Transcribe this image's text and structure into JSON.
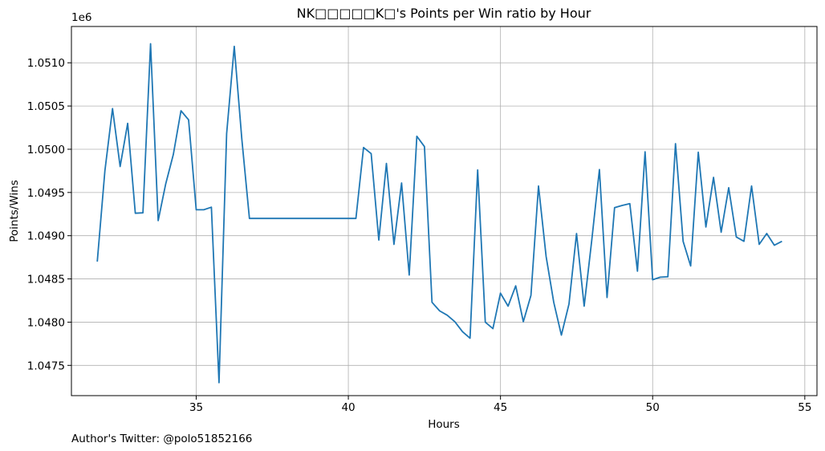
{
  "chart_data": {
    "type": "line",
    "title": "NK□□□□□K□'s Points per Win ratio by Hour",
    "xlabel": "Hours",
    "ylabel": "Points/Wins",
    "y_offset_label": "1e6",
    "xlim": [
      30.9,
      55.4
    ],
    "ylim": [
      1047150,
      1051420
    ],
    "xticks": [
      35,
      40,
      45,
      50,
      55
    ],
    "xtick_labels": [
      "35",
      "40",
      "45",
      "50",
      "55"
    ],
    "yticks": [
      1047500,
      1048000,
      1048500,
      1049000,
      1049500,
      1050000,
      1050500,
      1051000
    ],
    "ytick_labels": [
      "1.0475",
      "1.0480",
      "1.0485",
      "1.0490",
      "1.0495",
      "1.0500",
      "1.0505",
      "1.0510"
    ],
    "grid": true,
    "line_color": "#1f77b4",
    "series": [
      {
        "x": [
          31.75,
          32.0,
          32.25,
          32.5,
          32.75,
          33.0,
          33.25,
          33.5,
          33.75,
          34.0,
          34.25,
          34.5,
          34.75,
          35.0,
          35.25,
          35.5,
          35.75,
          36.0,
          36.25,
          36.5,
          36.75,
          37.0,
          37.25,
          37.5,
          37.75,
          38.0,
          38.25,
          38.5,
          38.75,
          39.0,
          39.25,
          39.5,
          39.75,
          40.0,
          40.25,
          40.5,
          40.75,
          41.0,
          41.25,
          41.5,
          41.75,
          42.0,
          42.25,
          42.5,
          42.75,
          43.0,
          43.25,
          43.5,
          43.75,
          44.0,
          44.25,
          44.5,
          44.75,
          45.0,
          45.25,
          45.5,
          45.75,
          46.0,
          46.25,
          46.5,
          46.75,
          47.0,
          47.25,
          47.5,
          47.75,
          48.0,
          48.25,
          48.5,
          48.75,
          49.0,
          49.25,
          49.5,
          49.75,
          50.0,
          50.25,
          50.5,
          50.75,
          51.0,
          51.25,
          51.5,
          51.75,
          52.0,
          52.25,
          52.5,
          52.75,
          53.0,
          53.25,
          53.5,
          53.75,
          54.0,
          54.25
        ],
        "y": [
          1048700,
          1049750,
          1050470,
          1049800,
          1050300,
          1049260,
          1049265,
          1051220,
          1049175,
          1049600,
          1049940,
          1050445,
          1050340,
          1049300,
          1049300,
          1049330,
          1047300,
          1050180,
          1051190,
          1050120,
          1049200,
          1049200,
          1049200,
          1049200,
          1049200,
          1049200,
          1049200,
          1049200,
          1049200,
          1049200,
          1049200,
          1049200,
          1049200,
          1049200,
          1049200,
          1050020,
          1049950,
          1048950,
          1049835,
          1048900,
          1049610,
          1048545,
          1050150,
          1050030,
          1048230,
          1048130,
          1048080,
          1048005,
          1047890,
          1047815,
          1049760,
          1048000,
          1047925,
          1048335,
          1048185,
          1048420,
          1048005,
          1048310,
          1049575,
          1048760,
          1048230,
          1047850,
          1048210,
          1049025,
          1048185,
          1048950,
          1049765,
          1048285,
          1049325,
          1049350,
          1049370,
          1048590,
          1049970,
          1048490,
          1048520,
          1048525,
          1050065,
          1048935,
          1048650,
          1049965,
          1049100,
          1049675,
          1049040,
          1049555,
          1048985,
          1048935,
          1049575,
          1048900,
          1049025,
          1048890,
          1048935
        ]
      }
    ]
  },
  "footer": {
    "author": "Author's Twitter: @polo51852166"
  }
}
